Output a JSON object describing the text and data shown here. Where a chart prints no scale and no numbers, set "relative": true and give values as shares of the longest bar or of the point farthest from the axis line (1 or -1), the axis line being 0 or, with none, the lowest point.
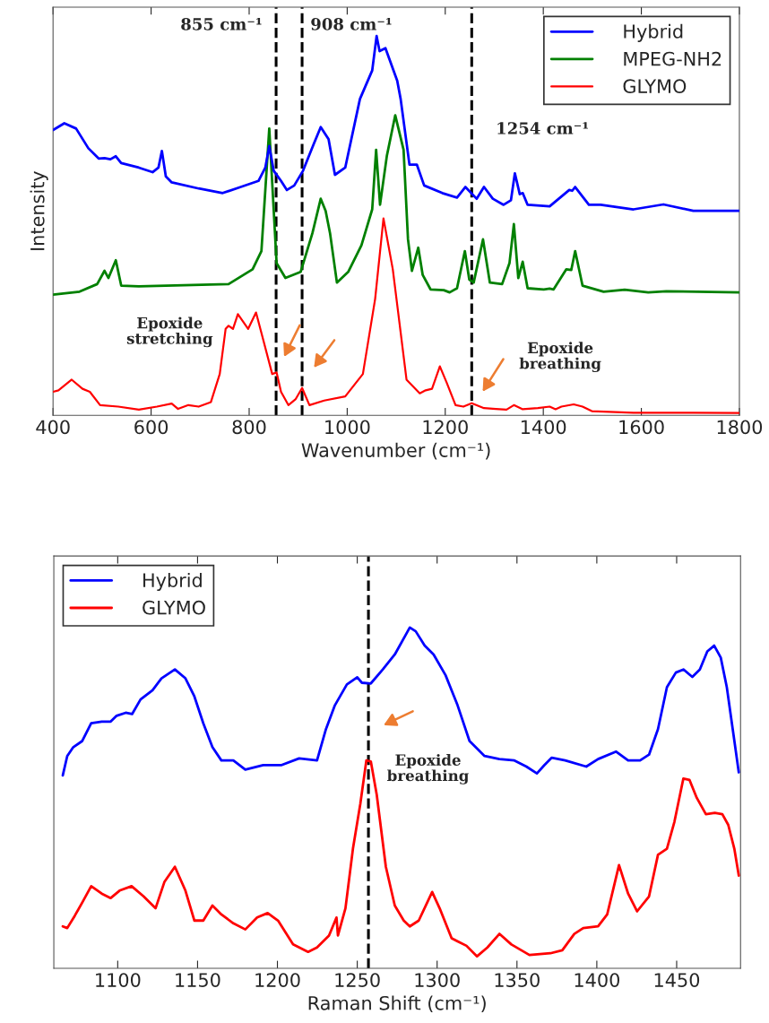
{
  "chart_data": [
    {
      "type": "line",
      "xlabel": "Wavenumber (cm⁻¹)",
      "ylabel": "Intensity",
      "relative": true,
      "xlim": [
        400,
        1800
      ],
      "xticks": [
        400,
        600,
        800,
        1000,
        1200,
        1400,
        1600,
        1800
      ],
      "tick_labels": "x",
      "grid": false,
      "legend": "top right",
      "marker": "none",
      "line_style": "solid",
      "ref_lines": [
        {
          "axis": "x",
          "value": 855,
          "label": "855 cm⁻¹",
          "color": "#000000",
          "line_style": "dashed"
        },
        {
          "axis": "x",
          "value": 908,
          "label": "908 cm⁻¹",
          "color": "#000000",
          "line_style": "dashed"
        },
        {
          "axis": "x",
          "value": 1254,
          "label": "1254 cm⁻¹",
          "color": "#000000",
          "line_style": "dashed"
        }
      ],
      "annotations": [
        "Epoxide stretching",
        "Epoxide breathing"
      ],
      "series": [
        {
          "name": "Hybrid",
          "color": "#0000ff",
          "x": [
            400,
            423,
            447,
            472,
            493,
            505,
            517,
            528,
            539,
            575,
            603,
            615,
            622,
            630,
            642,
            697,
            746,
            783,
            819,
            833,
            841,
            850,
            865,
            877,
            892,
            910,
            932,
            946,
            962,
            975,
            996,
            1026,
            1051,
            1060,
            1066,
            1078,
            1102,
            1109,
            1127,
            1142,
            1157,
            1194,
            1224,
            1241,
            1264,
            1279,
            1297,
            1319,
            1334,
            1342,
            1352,
            1358,
            1368,
            1413,
            1453,
            1459,
            1465,
            1493,
            1517,
            1584,
            1645,
            1706,
            1800
          ],
          "values": [
            0.752,
            0.77,
            0.756,
            0.704,
            0.677,
            0.678,
            0.675,
            0.683,
            0.665,
            0.653,
            0.641,
            0.653,
            0.697,
            0.63,
            0.614,
            0.598,
            0.586,
            0.602,
            0.618,
            0.653,
            0.71,
            0.645,
            0.618,
            0.594,
            0.606,
            0.645,
            0.716,
            0.76,
            0.728,
            0.634,
            0.653,
            0.834,
            0.909,
            1.0,
            0.96,
            0.968,
            0.882,
            0.834,
            0.661,
            0.661,
            0.606,
            0.586,
            0.574,
            0.602,
            0.571,
            0.602,
            0.571,
            0.555,
            0.567,
            0.638,
            0.583,
            0.586,
            0.555,
            0.551,
            0.594,
            0.592,
            0.602,
            0.555,
            0.555,
            0.543,
            0.556,
            0.539,
            0.539
          ]
        },
        {
          "name": "MPEG-NH2",
          "color": "#008000",
          "x": [
            400,
            454,
            490,
            505,
            513,
            528,
            539,
            575,
            758,
            807,
            825,
            841,
            856,
            874,
            905,
            929,
            946,
            956,
            965,
            979,
            1002,
            1029,
            1051,
            1059,
            1067,
            1081,
            1098,
            1115,
            1124,
            1132,
            1145,
            1154,
            1170,
            1197,
            1209,
            1224,
            1240,
            1249,
            1258,
            1277,
            1291,
            1316,
            1331,
            1340,
            1349,
            1358,
            1368,
            1401,
            1413,
            1421,
            1447,
            1457,
            1465,
            1480,
            1523,
            1566,
            1614,
            1651,
            1800
          ],
          "values": [
            0.318,
            0.326,
            0.346,
            0.381,
            0.362,
            0.409,
            0.342,
            0.34,
            0.346,
            0.385,
            0.433,
            0.756,
            0.401,
            0.362,
            0.378,
            0.48,
            0.571,
            0.539,
            0.48,
            0.35,
            0.378,
            0.448,
            0.543,
            0.7,
            0.555,
            0.685,
            0.791,
            0.7,
            0.464,
            0.381,
            0.442,
            0.37,
            0.332,
            0.33,
            0.324,
            0.335,
            0.433,
            0.358,
            0.35,
            0.464,
            0.35,
            0.346,
            0.401,
            0.504,
            0.362,
            0.405,
            0.335,
            0.332,
            0.334,
            0.332,
            0.385,
            0.383,
            0.433,
            0.342,
            0.326,
            0.331,
            0.324,
            0.327,
            0.324
          ]
        },
        {
          "name": "GLYMO",
          "color": "#ff0000",
          "x": [
            400,
            411,
            438,
            460,
            475,
            496,
            533,
            575,
            612,
            642,
            655,
            676,
            697,
            722,
            740,
            752,
            758,
            767,
            777,
            798,
            814,
            831,
            847,
            856,
            865,
            880,
            895,
            908,
            923,
            953,
            996,
            1032,
            1057,
            1074,
            1093,
            1121,
            1133,
            1148,
            1160,
            1173,
            1189,
            1203,
            1221,
            1237,
            1254,
            1279,
            1303,
            1325,
            1340,
            1358,
            1389,
            1413,
            1425,
            1437,
            1462,
            1480,
            1499,
            1584,
            1706,
            1800
          ],
          "values": [
            0.062,
            0.066,
            0.094,
            0.07,
            0.062,
            0.027,
            0.023,
            0.015,
            0.023,
            0.031,
            0.017,
            0.027,
            0.023,
            0.035,
            0.109,
            0.228,
            0.236,
            0.228,
            0.267,
            0.228,
            0.271,
            0.188,
            0.109,
            0.113,
            0.062,
            0.027,
            0.043,
            0.072,
            0.027,
            0.039,
            0.05,
            0.109,
            0.307,
            0.519,
            0.385,
            0.094,
            0.078,
            0.058,
            0.066,
            0.07,
            0.129,
            0.086,
            0.027,
            0.023,
            0.032,
            0.019,
            0.017,
            0.015,
            0.027,
            0.016,
            0.019,
            0.023,
            0.016,
            0.023,
            0.029,
            0.023,
            0.011,
            0.007,
            0.007,
            0.006
          ]
        }
      ]
    },
    {
      "type": "line",
      "xlabel": "Raman Shift (cm⁻¹)",
      "relative": true,
      "xlim": [
        1060,
        1490
      ],
      "xticks": [
        1100,
        1150,
        1200,
        1250,
        1300,
        1350,
        1400,
        1450
      ],
      "tick_labels": "x",
      "grid": false,
      "legend": "top left",
      "marker": "none",
      "line_style": "solid",
      "ref_lines": [
        {
          "axis": "x",
          "value": 1257,
          "color": "#000000",
          "line_style": "dashed"
        }
      ],
      "annotations": [
        "Epoxide breathing"
      ],
      "series": [
        {
          "name": "Hybrid",
          "color": "#0000ff",
          "x": [
            1065.6,
            1068.4,
            1072.2,
            1077.8,
            1083.4,
            1090,
            1095.6,
            1099.3,
            1105,
            1109,
            1114.3,
            1121.8,
            1127.4,
            1135.8,
            1142.4,
            1148,
            1153.6,
            1159.3,
            1164.9,
            1172.4,
            1179.9,
            1191.1,
            1202.3,
            1213.6,
            1224.8,
            1230.4,
            1236,
            1243.5,
            1250,
            1252.9,
            1258.5,
            1266,
            1273.5,
            1282.9,
            1286.6,
            1292.2,
            1297.8,
            1305.3,
            1312.8,
            1320.3,
            1329.7,
            1339,
            1348.4,
            1355.9,
            1362.5,
            1367.1,
            1371.8,
            1380.2,
            1393.4,
            1400.8,
            1412.1,
            1419.6,
            1427.1,
            1432.7,
            1438.3,
            1443.9,
            1449.5,
            1454.2,
            1459.8,
            1464.5,
            1469.2,
            1473.5,
            1477.6,
            1481.4,
            1485.1,
            1488.9
          ],
          "values": [
            0.566,
            0.623,
            0.649,
            0.667,
            0.719,
            0.724,
            0.724,
            0.741,
            0.75,
            0.746,
            0.789,
            0.816,
            0.851,
            0.877,
            0.851,
            0.798,
            0.719,
            0.649,
            0.61,
            0.61,
            0.583,
            0.596,
            0.596,
            0.616,
            0.61,
            0.702,
            0.772,
            0.833,
            0.854,
            0.838,
            0.836,
            0.877,
            0.921,
            1.0,
            0.989,
            0.947,
            0.921,
            0.86,
            0.772,
            0.667,
            0.623,
            0.614,
            0.61,
            0.592,
            0.572,
            0.596,
            0.618,
            0.61,
            0.592,
            0.614,
            0.636,
            0.61,
            0.61,
            0.627,
            0.702,
            0.825,
            0.868,
            0.877,
            0.855,
            0.877,
            0.93,
            0.947,
            0.912,
            0.825,
            0.702,
            0.575
          ]
        },
        {
          "name": "GLYMO",
          "color": "#ff0000",
          "x": [
            1065.6,
            1068.4,
            1073.1,
            1077.8,
            1083.4,
            1090,
            1095.6,
            1101.2,
            1108.7,
            1116.2,
            1123.7,
            1129.3,
            1135.8,
            1142.4,
            1148,
            1153.6,
            1159.3,
            1164.9,
            1172.4,
            1179.9,
            1187.3,
            1193.9,
            1200.4,
            1209.8,
            1219.2,
            1224.8,
            1232.3,
            1237,
            1237.9,
            1242.6,
            1247.3,
            1251.9,
            1255.7,
            1258.5,
            1262.2,
            1267.9,
            1273.5,
            1279.1,
            1282.9,
            1288.5,
            1296.9,
            1301.6,
            1309.1,
            1318.4,
            1325,
            1331.5,
            1339,
            1346.5,
            1357.8,
            1370.9,
            1378.4,
            1385.9,
            1391.5,
            1400.8,
            1406.5,
            1413.9,
            1419.6,
            1425.2,
            1432.7,
            1438.3,
            1443.9,
            1448.6,
            1454.2,
            1458,
            1462.6,
            1468.3,
            1473.9,
            1478.6,
            1482.3,
            1486.1,
            1488.9
          ],
          "values": [
            0.123,
            0.118,
            0.154,
            0.193,
            0.241,
            0.219,
            0.206,
            0.228,
            0.241,
            0.211,
            0.176,
            0.254,
            0.298,
            0.228,
            0.14,
            0.14,
            0.184,
            0.158,
            0.132,
            0.114,
            0.149,
            0.162,
            0.14,
            0.07,
            0.048,
            0.061,
            0.096,
            0.149,
            0.096,
            0.176,
            0.351,
            0.482,
            0.61,
            0.607,
            0.509,
            0.298,
            0.184,
            0.14,
            0.123,
            0.14,
            0.224,
            0.176,
            0.088,
            0.066,
            0.035,
            0.061,
            0.101,
            0.07,
            0.039,
            0.044,
            0.053,
            0.101,
            0.118,
            0.123,
            0.158,
            0.303,
            0.219,
            0.167,
            0.211,
            0.333,
            0.351,
            0.43,
            0.557,
            0.553,
            0.5,
            0.452,
            0.456,
            0.452,
            0.421,
            0.351,
            0.272
          ]
        }
      ]
    }
  ]
}
